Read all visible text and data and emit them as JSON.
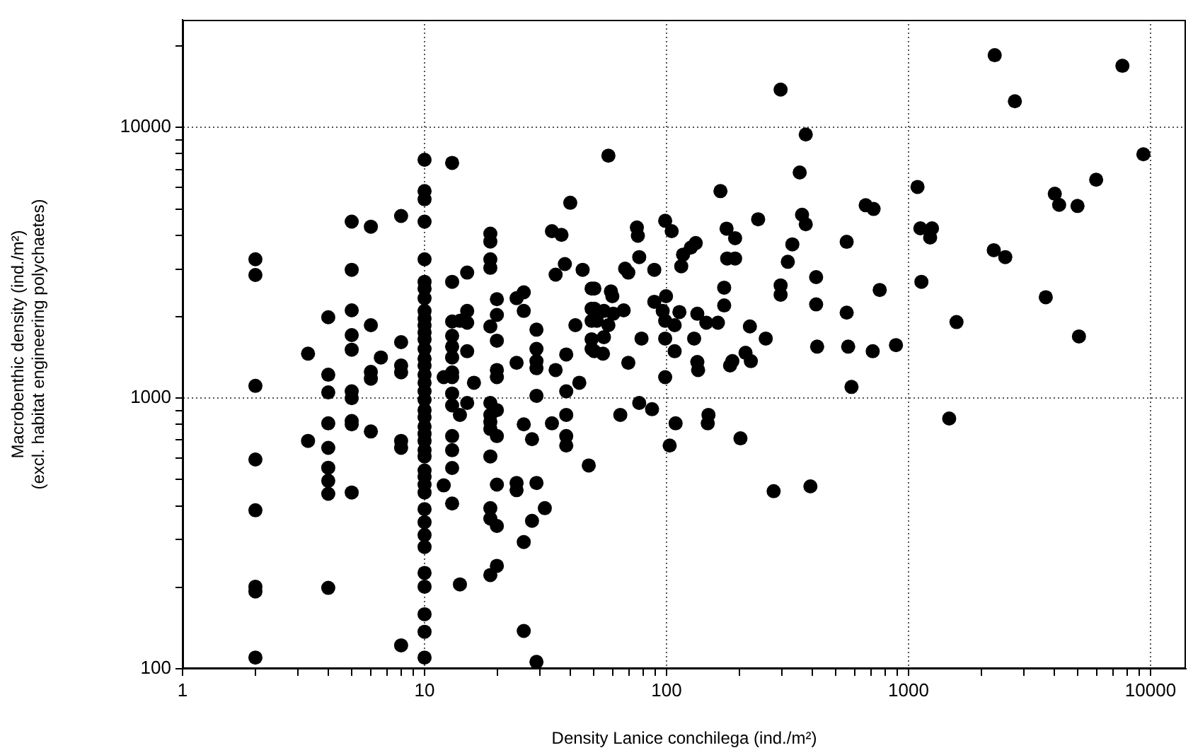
{
  "chart_data": {
    "type": "scatter",
    "xlabel": "Density Lanice conchilega (ind./m²)",
    "ylabel": "Macrobenthic density (ind./m²)\n(excl. habitat engineering polychaetes)",
    "log": "xy",
    "grid": true,
    "marker": "circle",
    "xlim": [
      1,
      14000
    ],
    "ylim": [
      100,
      25000
    ],
    "xticks": [
      1,
      {
        "value": 2,
        "label": null
      },
      {
        "value": 3,
        "label": null
      },
      {
        "value": 4,
        "label": null
      },
      {
        "value": 5,
        "label": null
      },
      {
        "value": 6,
        "label": null
      },
      {
        "value": 7,
        "label": null
      },
      {
        "value": 8,
        "label": null
      },
      {
        "value": 9,
        "label": null
      },
      10,
      {
        "value": 20,
        "label": null
      },
      {
        "value": 30,
        "label": null
      },
      {
        "value": 40,
        "label": null
      },
      {
        "value": 50,
        "label": null
      },
      {
        "value": 60,
        "label": null
      },
      {
        "value": 70,
        "label": null
      },
      {
        "value": 80,
        "label": null
      },
      {
        "value": 90,
        "label": null
      },
      100,
      {
        "value": 200,
        "label": null
      },
      {
        "value": 300,
        "label": null
      },
      {
        "value": 400,
        "label": null
      },
      {
        "value": 500,
        "label": null
      },
      {
        "value": 600,
        "label": null
      },
      {
        "value": 700,
        "label": null
      },
      {
        "value": 800,
        "label": null
      },
      {
        "value": 900,
        "label": null
      },
      1000,
      {
        "value": 2000,
        "label": null
      },
      {
        "value": 3000,
        "label": null
      },
      {
        "value": 4000,
        "label": null
      },
      {
        "value": 5000,
        "label": null
      },
      {
        "value": 6000,
        "label": null
      },
      {
        "value": 7000,
        "label": null
      },
      {
        "value": 8000,
        "label": null
      },
      {
        "value": 9000,
        "label": null
      },
      10000
    ],
    "yticks": [
      100,
      {
        "value": 200,
        "label": null
      },
      {
        "value": 300,
        "label": null
      },
      {
        "value": 400,
        "label": null
      },
      {
        "value": 500,
        "label": null
      },
      {
        "value": 600,
        "label": null
      },
      {
        "value": 700,
        "label": null
      },
      {
        "value": 800,
        "label": null
      },
      {
        "value": 900,
        "label": null
      },
      1000,
      {
        "value": 2000,
        "label": null
      },
      {
        "value": 3000,
        "label": null
      },
      {
        "value": 4000,
        "label": null
      },
      {
        "value": 5000,
        "label": null
      },
      {
        "value": 6000,
        "label": null
      },
      {
        "value": 7000,
        "label": null
      },
      {
        "value": 8000,
        "label": null
      },
      {
        "value": 9000,
        "label": null
      },
      10000,
      {
        "value": 20000,
        "label": null
      }
    ],
    "series": [
      {
        "color": "#000000",
        "x": [
          2,
          2,
          2,
          2,
          2,
          2,
          2,
          2,
          3.3,
          3.3,
          4,
          4,
          4,
          4,
          4,
          4,
          4,
          4,
          4,
          5,
          5,
          5,
          5,
          5,
          5,
          5,
          5,
          5,
          5,
          6,
          6,
          6,
          6,
          6,
          6.6,
          8,
          8,
          8,
          8,
          8,
          8,
          8,
          10,
          10,
          10,
          10,
          10,
          10,
          10,
          10,
          10,
          10,
          10,
          10,
          10,
          10,
          10,
          10,
          10,
          10,
          10,
          10,
          10,
          10,
          10,
          10,
          10,
          10,
          10,
          10,
          10,
          10,
          10,
          10,
          10,
          10,
          10,
          10,
          10,
          10,
          10,
          10,
          12,
          12,
          13,
          13,
          13,
          13,
          13,
          13,
          13,
          13,
          13,
          13,
          13,
          13,
          13,
          13,
          14,
          14,
          14,
          15,
          15,
          15,
          15,
          15,
          16,
          18.7,
          18.7,
          18.7,
          18.7,
          18.7,
          18.7,
          18.7,
          18.7,
          18.7,
          18.7,
          18.7,
          18.7,
          18.7,
          19.9,
          19.9,
          19.9,
          19.9,
          19.9,
          19.9,
          19.9,
          19.9,
          19.9,
          19.9,
          24,
          24,
          24,
          24,
          25.7,
          25.7,
          25.7,
          25.7,
          25.7,
          27.8,
          27.8,
          29,
          29,
          29,
          29,
          29,
          29,
          29,
          31.4,
          33.6,
          33.6,
          34.8,
          34.8,
          36.8,
          38,
          38.5,
          38.5,
          38.5,
          38.5,
          38.5,
          40,
          42,
          43.6,
          45,
          47.7,
          49,
          49,
          49,
          49,
          49,
          57.5,
          50.3,
          58.9,
          59.7,
          50.3,
          55.1,
          60.2,
          66.5,
          51.5,
          57.5,
          55.1,
          50.3,
          54.6,
          64.4,
          67.4,
          69.5,
          69.5,
          75.4,
          76.1,
          77.1,
          77.1,
          78.8,
          87.1,
          89,
          89,
          98.7,
          99.5,
          96.4,
          98.7,
          98.7,
          98.7,
          105,
          108,
          108,
          109,
          103,
          113,
          117,
          115,
          126,
          132,
          130,
          134,
          134,
          135,
          146,
          149,
          148,
          163,
          167,
          173,
          173,
          177,
          178,
          192,
          192,
          183,
          187,
          202,
          212,
          221,
          223,
          239,
          257,
          277,
          296,
          296,
          296,
          317,
          331,
          355,
          363,
          376,
          376,
          393,
          415,
          415,
          419,
          555,
          555,
          563,
          581,
          665,
          717,
          711,
          760,
          887,
          1089,
          1119,
          1250,
          1228,
          1130,
          1578,
          1472,
          2270,
          2750,
          2250,
          2510,
          3690,
          4020,
          4190,
          4990,
          5060,
          5960,
          7650,
          9340
        ],
        "values": [
          3260,
          2850,
          1110,
          593,
          385,
          201,
          193,
          110,
          1460,
          695,
          1990,
          1220,
          1050,
          807,
          655,
          553,
          495,
          443,
          199,
          4490,
          2980,
          2110,
          1710,
          1510,
          1060,
          1000,
          823,
          800,
          448,
          4300,
          1860,
          1250,
          1180,
          753,
          1413,
          4710,
          1610,
          1320,
          1245,
          695,
          655,
          122,
          7600,
          5820,
          5430,
          4490,
          3260,
          2690,
          2540,
          2340,
          2100,
          1970,
          1860,
          1750,
          1650,
          1520,
          1400,
          1320,
          1220,
          1140,
          1060,
          986,
          903,
          851,
          785,
          738,
          695,
          642,
          609,
          540,
          512,
          479,
          448,
          389,
          348,
          312,
          282,
          226,
          201,
          159,
          137,
          110,
          1195,
          476,
          7400,
          2690,
          1920,
          1700,
          1550,
          1413,
          1245,
          1195,
          1040,
          940,
          724,
          642,
          552,
          408,
          1930,
          867,
          205,
          2910,
          2100,
          1900,
          1490,
          960,
          1140,
          4050,
          3790,
          3260,
          3030,
          1840,
          960,
          867,
          817,
          769,
          609,
          392,
          359,
          222,
          2320,
          2030,
          1630,
          1270,
          1195,
          903,
          724,
          479,
          337,
          240,
          2340,
          1350,
          486,
          457,
          2460,
          2100,
          800,
          294,
          138,
          705,
          352,
          1790,
          1520,
          1370,
          1290,
          1020,
          486,
          106,
          392,
          4140,
          807,
          2860,
          1270,
          4010,
          3130,
          1450,
          1060,
          867,
          724,
          668,
          5270,
          1860,
          1140,
          2980,
          564,
          2540,
          2140,
          1930,
          1650,
          1520,
          7870,
          2540,
          2480,
          2380,
          2140,
          2100,
          2050,
          2110,
          1930,
          1860,
          1680,
          1490,
          1460,
          867,
          3010,
          2910,
          1350,
          4270,
          3980,
          3320,
          960,
          1660,
          910,
          2980,
          2270,
          4520,
          2380,
          2100,
          1930,
          1660,
          1195,
          4140,
          1860,
          1490,
          807,
          668,
          2080,
          3390,
          3070,
          3600,
          3740,
          1660,
          2050,
          1360,
          1270,
          1900,
          867,
          807,
          1900,
          5820,
          2560,
          2200,
          4230,
          3280,
          3900,
          3280,
          1320,
          1370,
          710,
          1470,
          1840,
          1370,
          4580,
          1660,
          453,
          13800,
          2610,
          2410,
          3190,
          3700,
          6820,
          4760,
          9420,
          4390,
          472,
          2800,
          2220,
          1550,
          3780,
          2070,
          1550,
          1100,
          5160,
          5000,
          1490,
          2510,
          1570,
          6030,
          4240,
          4240,
          3920,
          2690,
          1910,
          841,
          18500,
          12500,
          3520,
          3320,
          2360,
          5690,
          5180,
          5130,
          1690,
          6410,
          16900,
          7960
        ]
      }
    ]
  }
}
